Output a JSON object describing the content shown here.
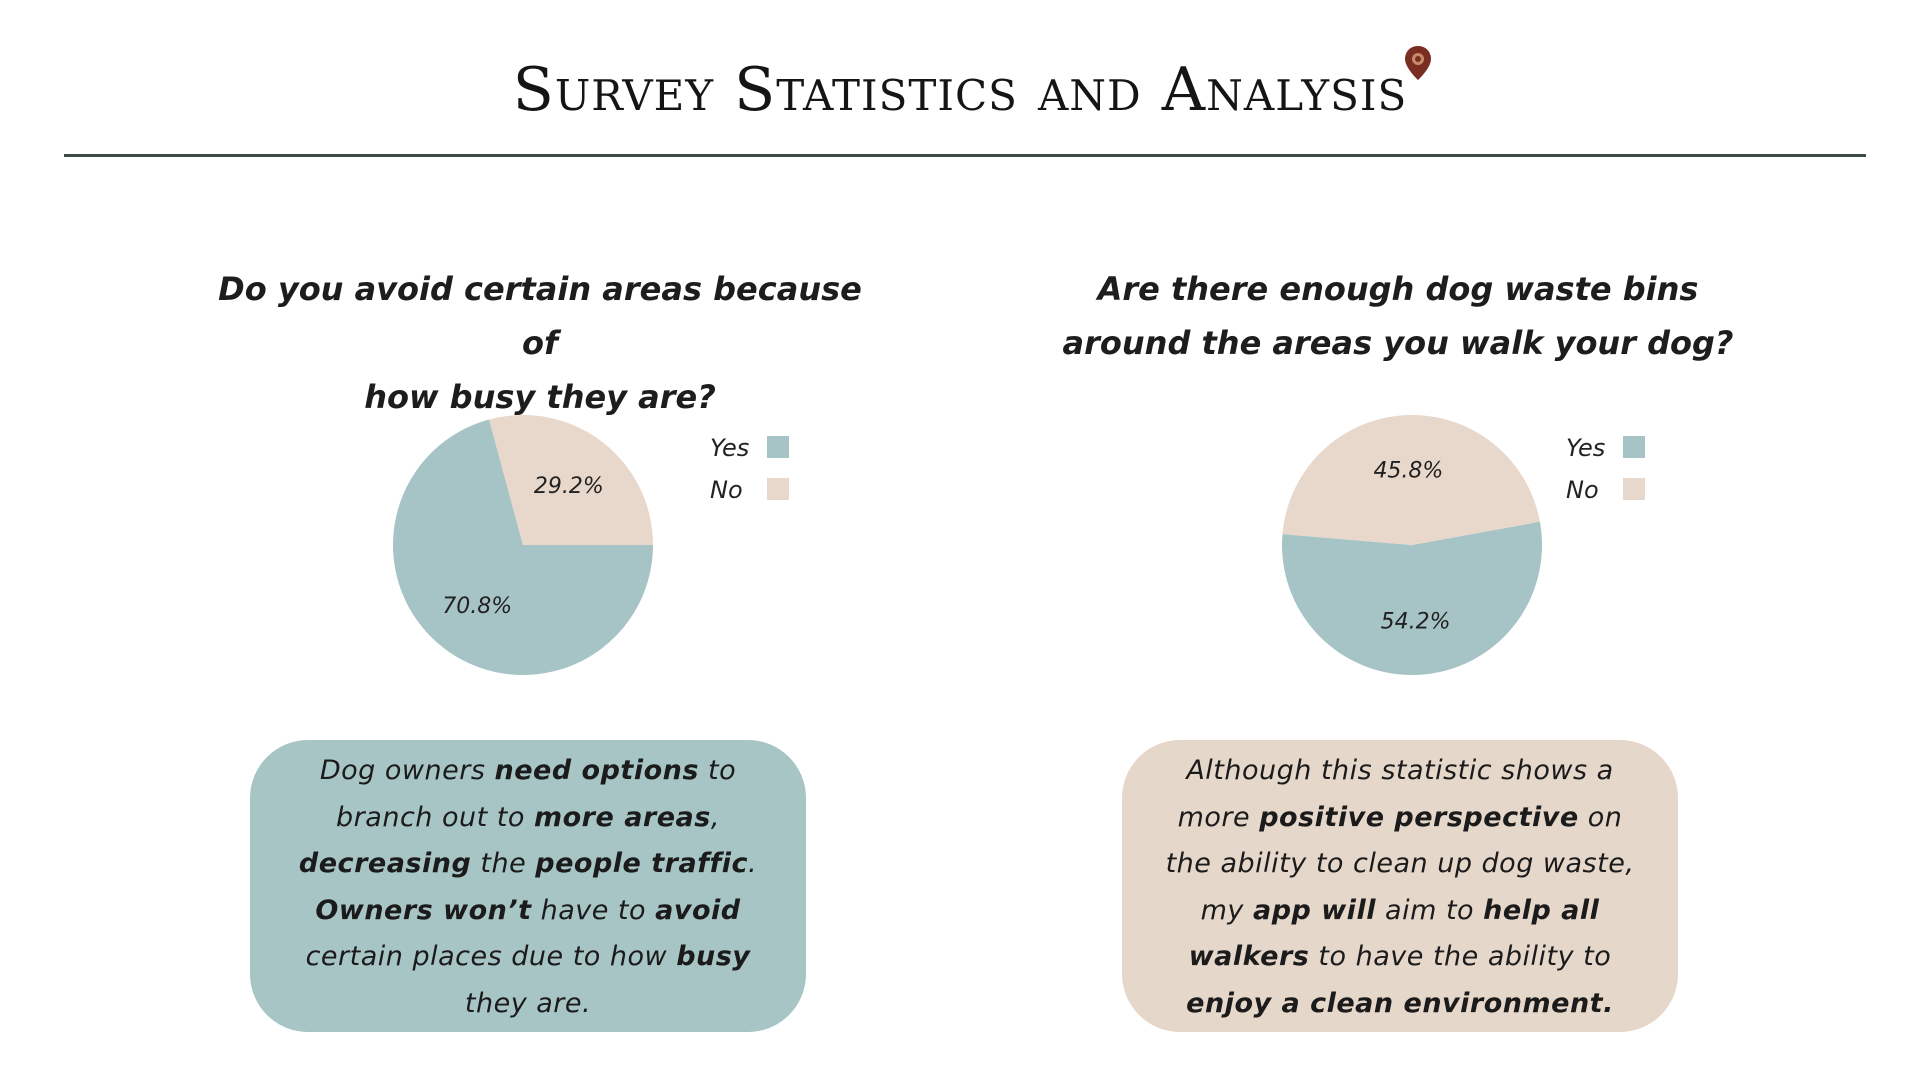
{
  "title": "Survey Statistics and Analysis",
  "colors": {
    "yes": "#a6c3c5",
    "no": "#e8d8cc",
    "rule": "#3d4a45",
    "pin": "#7a2e22"
  },
  "chart_data": [
    {
      "type": "pie",
      "title_lines": [
        "Do you avoid certain areas because of",
        "how busy they are?"
      ],
      "categories": [
        "Yes",
        "No"
      ],
      "values": [
        70.8,
        29.2
      ],
      "labels": [
        "70.8%",
        "29.2%"
      ],
      "legend": {
        "position": "right",
        "entries": [
          "Yes",
          "No"
        ]
      }
    },
    {
      "type": "pie",
      "title_lines": [
        "Are there enough dog waste bins",
        "around the areas you walk your dog?"
      ],
      "categories": [
        "Yes",
        "No"
      ],
      "values": [
        54.2,
        45.8
      ],
      "labels": [
        "54.2%",
        "45.8%"
      ],
      "legend": {
        "position": "right",
        "entries": [
          "Yes",
          "No"
        ]
      }
    }
  ],
  "callouts": [
    {
      "segments": [
        {
          "text": "Dog owners ",
          "bold": false
        },
        {
          "text": "need options",
          "bold": true
        },
        {
          "text": " to branch out to ",
          "bold": false
        },
        {
          "text": "more areas",
          "bold": true
        },
        {
          "text": ", ",
          "bold": false
        },
        {
          "text": "decreasing",
          "bold": true
        },
        {
          "text": " the ",
          "bold": false
        },
        {
          "text": "people traffic",
          "bold": true
        },
        {
          "text": ". ",
          "bold": false
        },
        {
          "text": "Owners won’t",
          "bold": true
        },
        {
          "text": " have to ",
          "bold": false
        },
        {
          "text": "avoid",
          "bold": true
        },
        {
          "text": " certain places due to how ",
          "bold": false
        },
        {
          "text": "busy",
          "bold": true
        },
        {
          "text": " they are.",
          "bold": false
        }
      ]
    },
    {
      "segments": [
        {
          "text": "Although this statistic shows a more ",
          "bold": false
        },
        {
          "text": "positive perspective",
          "bold": true
        },
        {
          "text": " on the ability to clean up dog waste, my ",
          "bold": false
        },
        {
          "text": "app will",
          "bold": true
        },
        {
          "text": " aim to ",
          "bold": false
        },
        {
          "text": "help all walkers",
          "bold": true
        },
        {
          "text": " to have the ability to ",
          "bold": false
        },
        {
          "text": "enjoy a clean environment.",
          "bold": true
        }
      ]
    }
  ]
}
